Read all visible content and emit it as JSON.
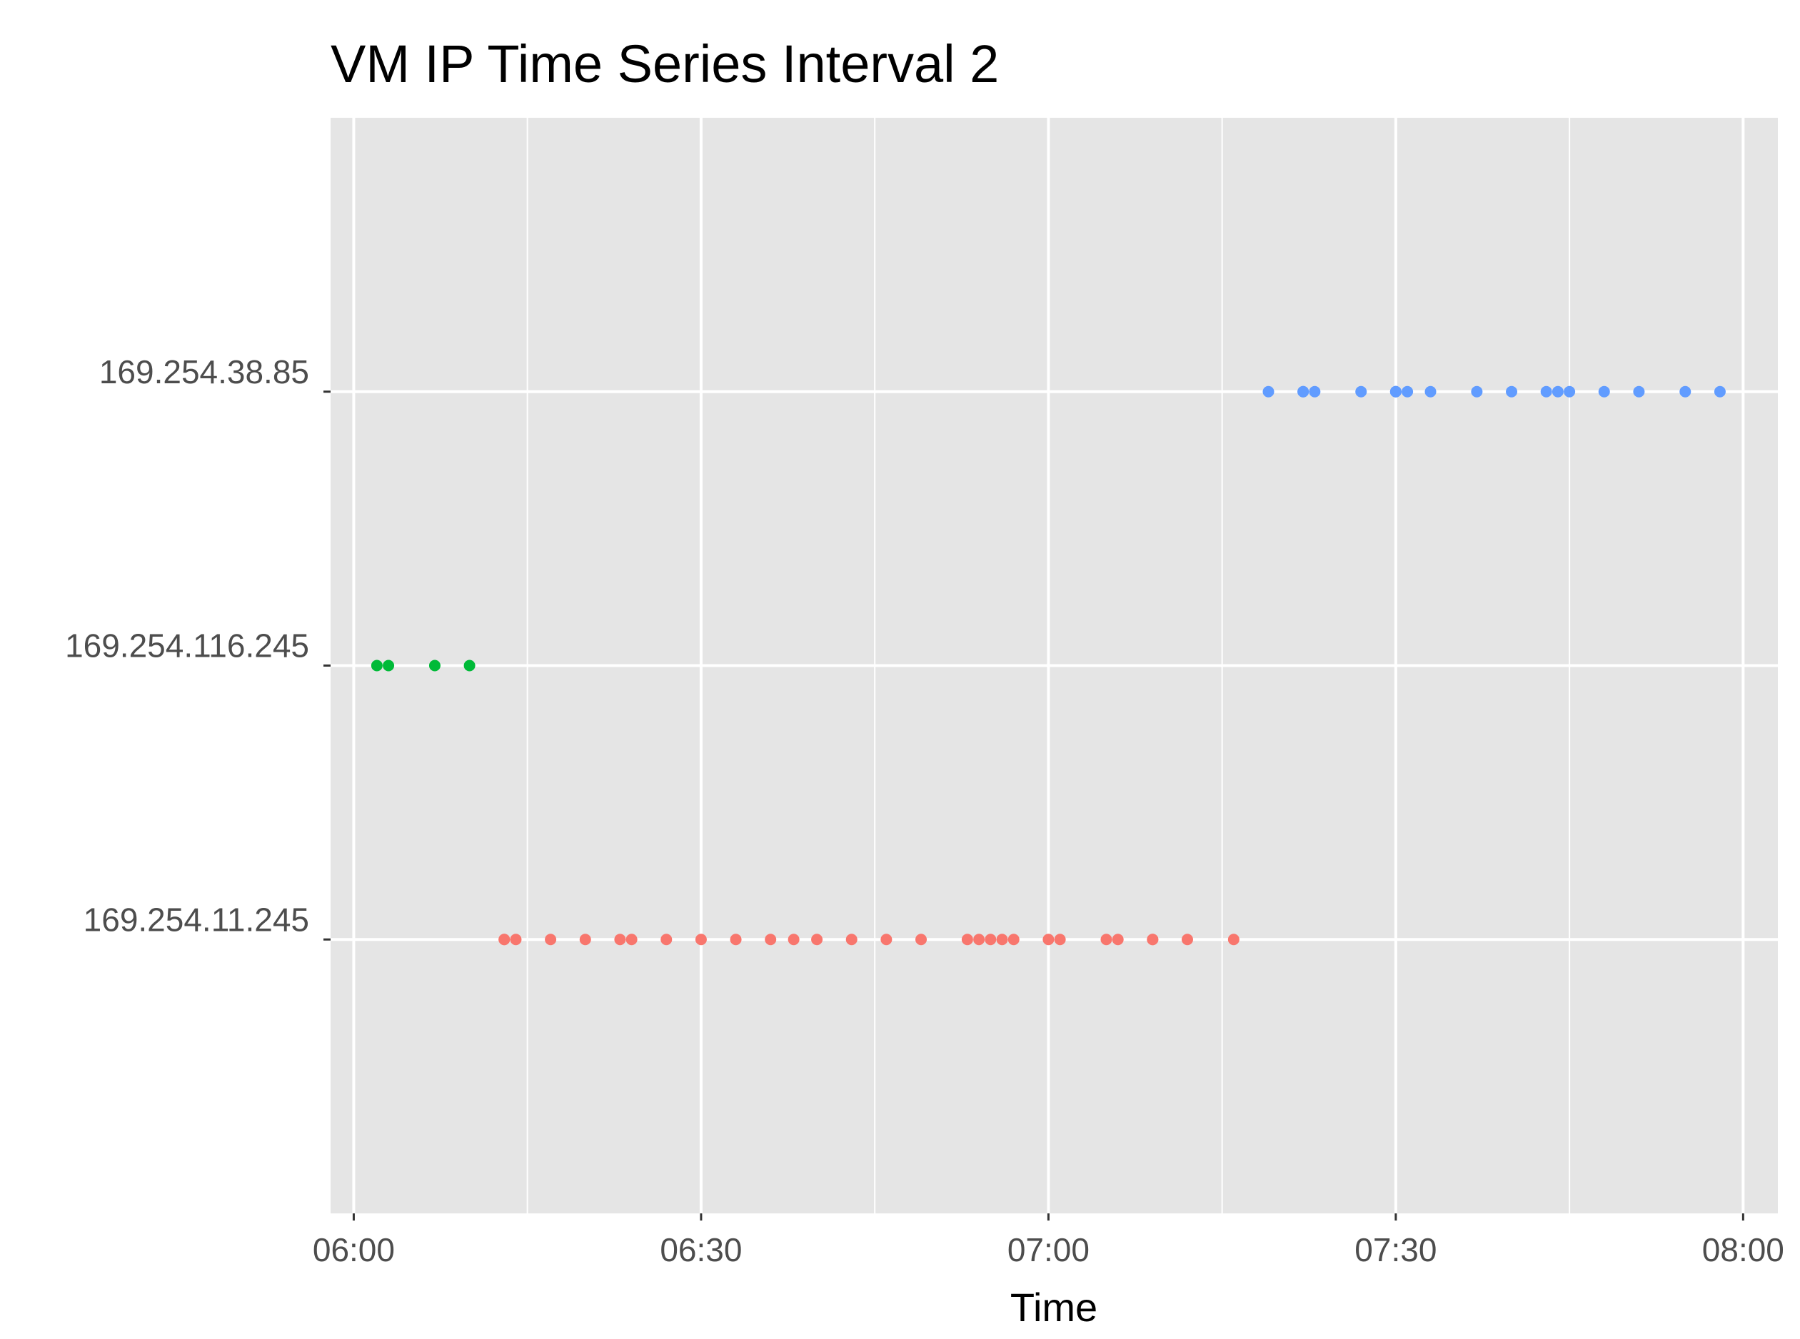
{
  "chart_data": {
    "type": "scatter",
    "title": "VM IP Time Series Interval 2",
    "xlabel": "Time",
    "ylabel": "",
    "x_ticks": [
      "06:00",
      "06:30",
      "07:00",
      "07:30",
      "08:00"
    ],
    "xlim": [
      "05:58",
      "08:03"
    ],
    "y_categories": [
      "169.254.11.245",
      "169.254.116.245",
      "169.254.38.85"
    ],
    "grid": true,
    "legend": "none",
    "background": "#e5e5e5",
    "series": [
      {
        "category": "169.254.38.85",
        "color": "#619cff",
        "x": [
          "07:19",
          "07:22",
          "07:22",
          "07:23",
          "07:27",
          "07:30",
          "07:30",
          "07:30",
          "07:31",
          "07:33",
          "07:37",
          "07:40",
          "07:43",
          "07:44",
          "07:45",
          "07:48",
          "07:51",
          "07:55",
          "07:58"
        ]
      },
      {
        "category": "169.254.116.245",
        "color": "#00ba38",
        "x": [
          "06:02",
          "06:03",
          "06:07",
          "06:10"
        ]
      },
      {
        "category": "169.254.11.245",
        "color": "#f8766d",
        "x": [
          "06:13",
          "06:13",
          "06:14",
          "06:17",
          "06:20",
          "06:23",
          "06:24",
          "06:27",
          "06:30",
          "06:33",
          "06:36",
          "06:38",
          "06:40",
          "06:43",
          "06:46",
          "06:49",
          "06:53",
          "06:54",
          "06:55",
          "06:56",
          "06:57",
          "07:00",
          "07:01",
          "07:05",
          "07:06",
          "07:09",
          "07:09",
          "07:12",
          "07:16"
        ]
      }
    ]
  }
}
